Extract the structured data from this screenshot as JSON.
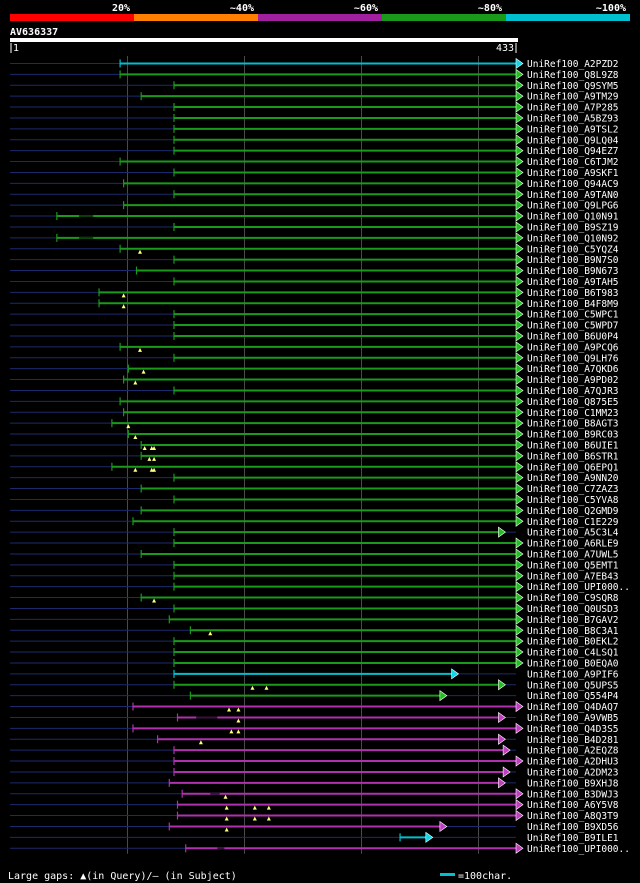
{
  "chart_data": {
    "type": "alignment",
    "query": {
      "name": "AV636337",
      "start": 1,
      "end": 433
    },
    "scale_labels": [
      "20%",
      "~40%",
      "~60%",
      "~80%",
      "~100%"
    ],
    "scale_colors": [
      "#ff0000",
      "#ff7f00",
      "#a020a0",
      "#1a9a1a",
      "#00c0d0"
    ],
    "legend": {
      "gaps": "Large gaps: ▲(in Query)/– (in Subject)",
      "unit": "=100char."
    },
    "hits": [
      {
        "id": "UniRef100_A2PZD2",
        "c": "cyan",
        "s": 95,
        "e": 433,
        "p": 0,
        "q": []
      },
      {
        "id": "UniRef100_Q8L9Z8",
        "c": "green",
        "s": 95,
        "e": 433,
        "p": 0,
        "q": []
      },
      {
        "id": "UniRef100_Q9SYM5",
        "c": "green",
        "s": 141,
        "e": 433,
        "p": 0,
        "q": []
      },
      {
        "id": "UniRef100_A9TM29",
        "c": "green",
        "s": 113,
        "e": 433,
        "p": 0,
        "q": []
      },
      {
        "id": "UniRef100_A7P285",
        "c": "green",
        "s": 141,
        "e": 433,
        "p": 0,
        "q": []
      },
      {
        "id": "UniRef100_A5BZ93",
        "c": "green",
        "s": 141,
        "e": 433,
        "p": 0,
        "q": []
      },
      {
        "id": "UniRef100_A9TSL2",
        "c": "green",
        "s": 141,
        "e": 433,
        "p": 0,
        "q": []
      },
      {
        "id": "UniRef100_Q9LQ04",
        "c": "green",
        "s": 141,
        "e": 433,
        "p": 0,
        "q": []
      },
      {
        "id": "UniRef100_Q94EZ7",
        "c": "green",
        "s": 141,
        "e": 433,
        "p": 0,
        "q": []
      },
      {
        "id": "UniRef100_C6TJM2",
        "c": "green",
        "s": 95,
        "e": 433,
        "p": 0,
        "q": []
      },
      {
        "id": "UniRef100_A9SKF1",
        "c": "green",
        "s": 141,
        "e": 433,
        "p": 0,
        "q": []
      },
      {
        "id": "UniRef100_Q94AC9",
        "c": "green",
        "s": 98,
        "e": 433,
        "p": 0,
        "q": []
      },
      {
        "id": "UniRef100_A9TAN0",
        "c": "green",
        "s": 141,
        "e": 433,
        "p": 0,
        "q": []
      },
      {
        "id": "UniRef100_Q9LPG6",
        "c": "green",
        "s": 98,
        "e": 433,
        "p": 0,
        "q": []
      },
      {
        "id": "UniRef100_Q10N91",
        "c": "green",
        "s": 41,
        "e": 433,
        "p": 1,
        "q": []
      },
      {
        "id": "UniRef100_B9SZ19",
        "c": "green",
        "s": 141,
        "e": 433,
        "p": 0,
        "q": []
      },
      {
        "id": "UniRef100_Q10N92",
        "c": "green",
        "s": 41,
        "e": 433,
        "p": 1,
        "q": []
      },
      {
        "id": "UniRef100_C5YQZ4",
        "c": "green",
        "s": 95,
        "e": 433,
        "p": 0,
        "q": [
          112
        ]
      },
      {
        "id": "UniRef100_B9N7S0",
        "c": "green",
        "s": 141,
        "e": 433,
        "p": 0,
        "q": []
      },
      {
        "id": "UniRef100_B9N673",
        "c": "green",
        "s": 109,
        "e": 433,
        "p": 0,
        "q": []
      },
      {
        "id": "UniRef100_A9TAH5",
        "c": "green",
        "s": 141,
        "e": 433,
        "p": 0,
        "q": []
      },
      {
        "id": "UniRef100_B6T983",
        "c": "green",
        "s": 77,
        "e": 433,
        "p": 0,
        "q": [
          98
        ]
      },
      {
        "id": "UniRef100_B4F8M9",
        "c": "green",
        "s": 77,
        "e": 433,
        "p": 0,
        "q": [
          98
        ]
      },
      {
        "id": "UniRef100_C5WPC1",
        "c": "green",
        "s": 141,
        "e": 433,
        "p": 0,
        "q": []
      },
      {
        "id": "UniRef100_C5WPD7",
        "c": "green",
        "s": 141,
        "e": 433,
        "p": 0,
        "q": []
      },
      {
        "id": "UniRef100_B6U0P4",
        "c": "green",
        "s": 141,
        "e": 433,
        "p": 0,
        "q": []
      },
      {
        "id": "UniRef100_A9PCQ6",
        "c": "green",
        "s": 95,
        "e": 433,
        "p": 0,
        "q": [
          112
        ]
      },
      {
        "id": "UniRef100_Q9LH76",
        "c": "green",
        "s": 141,
        "e": 433,
        "p": 0,
        "q": []
      },
      {
        "id": "UniRef100_A7QKD6",
        "c": "green",
        "s": 102,
        "e": 433,
        "p": 0,
        "q": [
          115
        ]
      },
      {
        "id": "UniRef100_A9PD02",
        "c": "green",
        "s": 98,
        "e": 433,
        "p": 0,
        "q": [
          108
        ]
      },
      {
        "id": "UniRef100_A7QJR3",
        "c": "green",
        "s": 141,
        "e": 433,
        "p": 0,
        "q": []
      },
      {
        "id": "UniRef100_Q875E5",
        "c": "green",
        "s": 95,
        "e": 433,
        "p": 0,
        "q": []
      },
      {
        "id": "UniRef100_C1MM23",
        "c": "green",
        "s": 98,
        "e": 433,
        "p": 0,
        "q": []
      },
      {
        "id": "UniRef100_B8AGT3",
        "c": "green",
        "s": 88,
        "e": 433,
        "p": 0,
        "q": [
          102
        ]
      },
      {
        "id": "UniRef100_B9RC03",
        "c": "green",
        "s": 102,
        "e": 433,
        "p": 0,
        "q": [
          108
        ]
      },
      {
        "id": "UniRef100_B6UIE1",
        "c": "green",
        "s": 113,
        "e": 433,
        "p": 0,
        "q": [
          116,
          122,
          124
        ]
      },
      {
        "id": "UniRef100_B6STR1",
        "c": "green",
        "s": 113,
        "e": 433,
        "p": 0,
        "q": [
          120,
          124
        ]
      },
      {
        "id": "UniRef100_Q6EPQ1",
        "c": "green",
        "s": 88,
        "e": 433,
        "p": 0,
        "q": [
          108,
          122,
          124
        ]
      },
      {
        "id": "UniRef100_A9NN20",
        "c": "green",
        "s": 141,
        "e": 433,
        "p": 0,
        "q": []
      },
      {
        "id": "UniRef100_C7ZAZ3",
        "c": "green",
        "s": 113,
        "e": 433,
        "p": 0,
        "q": []
      },
      {
        "id": "UniRef100_C5YVA8",
        "c": "green",
        "s": 141,
        "e": 433,
        "p": 0,
        "q": []
      },
      {
        "id": "UniRef100_Q2GMD9",
        "c": "green",
        "s": 113,
        "e": 433,
        "p": 0,
        "q": []
      },
      {
        "id": "UniRef100_C1E229",
        "c": "green",
        "s": 106,
        "e": 433,
        "p": 0,
        "q": []
      },
      {
        "id": "UniRef100_A5C3L4",
        "c": "green",
        "s": 141,
        "e": 418,
        "p": 0,
        "q": []
      },
      {
        "id": "UniRef100_A6RLE9",
        "c": "green",
        "s": 141,
        "e": 433,
        "p": 0,
        "q": []
      },
      {
        "id": "UniRef100_A7UWL5",
        "c": "green",
        "s": 113,
        "e": 433,
        "p": 0,
        "q": []
      },
      {
        "id": "UniRef100_Q5EMT1",
        "c": "green",
        "s": 141,
        "e": 433,
        "p": 0,
        "q": []
      },
      {
        "id": "UniRef100_A7EB43",
        "c": "green",
        "s": 141,
        "e": 433,
        "p": 0,
        "q": []
      },
      {
        "id": "UniRef100_UPI000..",
        "c": "green",
        "s": 141,
        "e": 433,
        "p": 0,
        "q": []
      },
      {
        "id": "UniRef100_C9SQR8",
        "c": "green",
        "s": 113,
        "e": 433,
        "p": 0,
        "q": [
          124
        ]
      },
      {
        "id": "UniRef100_Q0USD3",
        "c": "green",
        "s": 141,
        "e": 433,
        "p": 0,
        "q": []
      },
      {
        "id": "UniRef100_B7GAV2",
        "c": "green",
        "s": 137,
        "e": 433,
        "p": 0,
        "q": []
      },
      {
        "id": "UniRef100_B8C3A1",
        "c": "green",
        "s": 155,
        "e": 433,
        "p": 0,
        "q": [
          172
        ]
      },
      {
        "id": "UniRef100_B0EKL2",
        "c": "green",
        "s": 141,
        "e": 433,
        "p": 0,
        "q": []
      },
      {
        "id": "UniRef100_C4LSQ1",
        "c": "green",
        "s": 141,
        "e": 433,
        "p": 0,
        "q": []
      },
      {
        "id": "UniRef100_B0EQA0",
        "c": "green",
        "s": 141,
        "e": 433,
        "p": 0,
        "q": []
      },
      {
        "id": "UniRef100_A9PIF6",
        "c": "cyan",
        "s": 141,
        "e": 378,
        "p": 0,
        "q": []
      },
      {
        "id": "UniRef100_Q5UPS5",
        "c": "green",
        "s": 141,
        "e": 418,
        "p": 0,
        "q": [
          208,
          220
        ]
      },
      {
        "id": "UniRef100_Q554P4",
        "c": "green",
        "s": 155,
        "e": 368,
        "p": 0,
        "q": []
      },
      {
        "id": "UniRef100_Q4DAQ7",
        "c": "purple",
        "s": 106,
        "e": 433,
        "p": 0,
        "q": [
          188,
          196
        ]
      },
      {
        "id": "UniRef100_A9VWB5",
        "c": "purple",
        "s": 144,
        "e": 418,
        "p": 2,
        "q": [
          196
        ]
      },
      {
        "id": "UniRef100_Q4D3S5",
        "c": "purple",
        "s": 106,
        "e": 433,
        "p": 0,
        "q": [
          190,
          196
        ]
      },
      {
        "id": "UniRef100_B4D281",
        "c": "purple",
        "s": 127,
        "e": 418,
        "p": 0,
        "q": [
          164
        ]
      },
      {
        "id": "UniRef100_A2EQZ8",
        "c": "purple",
        "s": 141,
        "e": 422,
        "p": 0,
        "q": []
      },
      {
        "id": "UniRef100_A2DHU3",
        "c": "purple",
        "s": 141,
        "e": 433,
        "p": 0,
        "q": []
      },
      {
        "id": "UniRef100_A2DM23",
        "c": "purple",
        "s": 141,
        "e": 422,
        "p": 0,
        "q": []
      },
      {
        "id": "UniRef100_B9XHJ8",
        "c": "purple",
        "s": 137,
        "e": 418,
        "p": 0,
        "q": []
      },
      {
        "id": "UniRef100_B3DWJ3",
        "c": "purple",
        "s": 148,
        "e": 433,
        "p": 3,
        "q": [
          185
        ]
      },
      {
        "id": "UniRef100_A6Y5V8",
        "c": "purple",
        "s": 144,
        "e": 433,
        "p": 0,
        "q": [
          186,
          210,
          222
        ]
      },
      {
        "id": "UniRef100_A8Q3T9",
        "c": "purple",
        "s": 144,
        "e": 433,
        "p": 0,
        "q": [
          186,
          210,
          222
        ]
      },
      {
        "id": "UniRef100_B9XD56",
        "c": "purple",
        "s": 137,
        "e": 368,
        "p": 0,
        "q": [
          186
        ]
      },
      {
        "id": "UniRef100_B9ILE1",
        "c": "cyan",
        "s": 334,
        "e": 356,
        "p": 0,
        "q": []
      },
      {
        "id": "UniRef100_UPI000..",
        "c": "purple",
        "s": 151,
        "e": 433,
        "p": 4,
        "q": []
      }
    ]
  }
}
